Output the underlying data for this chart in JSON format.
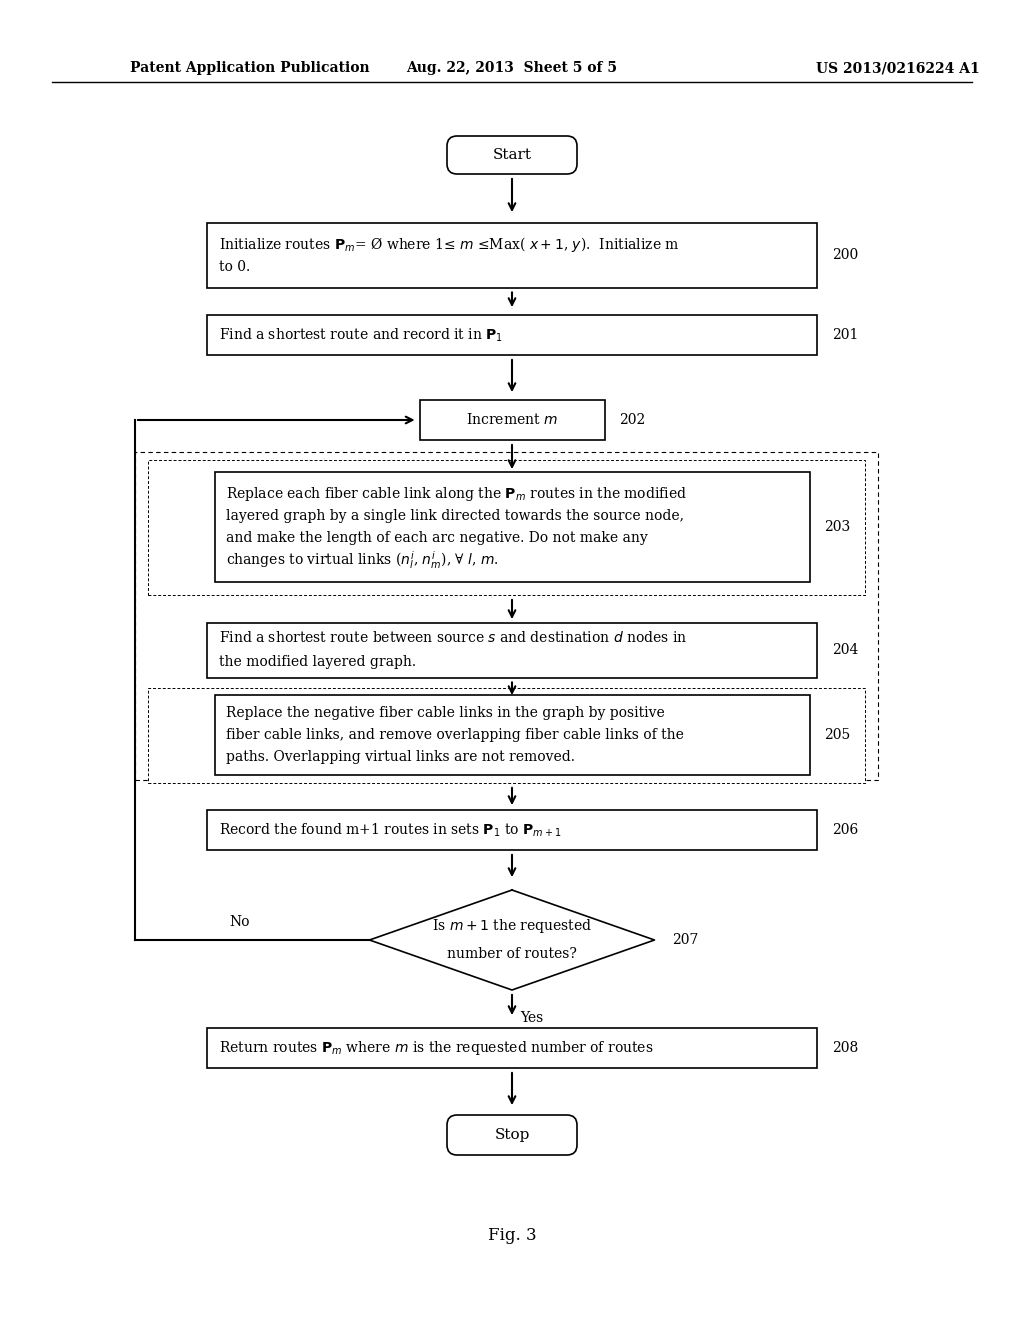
{
  "bg_color": "#ffffff",
  "header_left": "Patent Application Publication",
  "header_center": "Aug. 22, 2013  Sheet 5 of 5",
  "header_right": "US 2013/0216224 A1",
  "fig_label": "Fig. 3"
}
